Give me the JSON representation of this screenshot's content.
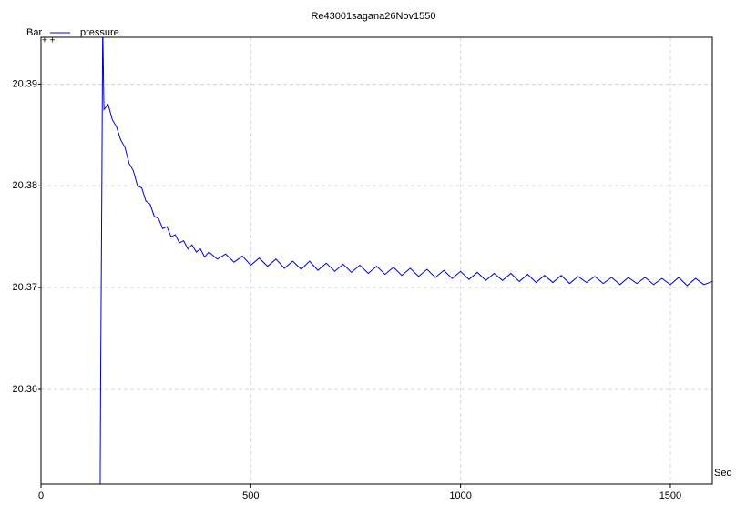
{
  "chart_data": {
    "type": "line",
    "title": "Re43001sagana26Nov1550",
    "y_label": "Bar",
    "x_label": "Sec",
    "xlim": [
      0,
      1600
    ],
    "ylim": [
      20.3507,
      20.3946
    ],
    "xticks": [
      0,
      500,
      1000,
      1500
    ],
    "yticks": [
      20.36,
      20.37,
      20.38,
      20.39
    ],
    "grid": true,
    "legend": "top-left",
    "x": [
      141,
      142,
      145,
      147,
      150,
      160,
      170,
      180,
      190,
      200,
      210,
      220,
      230,
      240,
      250,
      260,
      270,
      280,
      290,
      300,
      310,
      320,
      330,
      340,
      350,
      360,
      370,
      380,
      390,
      400,
      420,
      440,
      460,
      480,
      500,
      520,
      540,
      560,
      580,
      600,
      620,
      640,
      660,
      680,
      700,
      720,
      740,
      760,
      780,
      800,
      820,
      840,
      860,
      880,
      900,
      920,
      940,
      960,
      980,
      1000,
      1020,
      1040,
      1060,
      1080,
      1100,
      1120,
      1140,
      1160,
      1180,
      1200,
      1220,
      1240,
      1260,
      1280,
      1300,
      1320,
      1340,
      1360,
      1380,
      1400,
      1420,
      1440,
      1460,
      1480,
      1500,
      1520,
      1540,
      1560,
      1580,
      1600
    ],
    "series": [
      {
        "name": "pressure",
        "color": "#0000cc",
        "values": [
          20.3507,
          20.3602,
          20.38,
          20.396,
          20.3875,
          20.388,
          20.3865,
          20.3858,
          20.3845,
          20.3838,
          20.3822,
          20.3815,
          20.38,
          20.3798,
          20.3785,
          20.3782,
          20.377,
          20.3768,
          20.3758,
          20.376,
          20.375,
          20.3752,
          20.3744,
          20.3746,
          20.3738,
          20.3742,
          20.3735,
          20.3738,
          20.373,
          20.3735,
          20.3728,
          20.3733,
          20.3725,
          20.3731,
          20.3722,
          20.3729,
          20.3721,
          20.3728,
          20.3719,
          20.3726,
          20.3718,
          20.3726,
          20.3717,
          20.3724,
          20.3716,
          20.3723,
          20.3715,
          20.3722,
          20.3714,
          20.3721,
          20.3713,
          20.372,
          20.3712,
          20.3719,
          20.3711,
          20.3718,
          20.371,
          20.3717,
          20.3709,
          20.3716,
          20.3708,
          20.3715,
          20.3707,
          20.3714,
          20.3707,
          20.3714,
          20.3706,
          20.3713,
          20.3705,
          20.3712,
          20.3705,
          20.3712,
          20.3704,
          20.3711,
          20.3705,
          20.3711,
          20.3704,
          20.371,
          20.3703,
          20.371,
          20.3704,
          20.371,
          20.3703,
          20.3709,
          20.3703,
          20.371,
          20.3702,
          20.3709,
          20.3703,
          20.3706
        ]
      }
    ]
  }
}
